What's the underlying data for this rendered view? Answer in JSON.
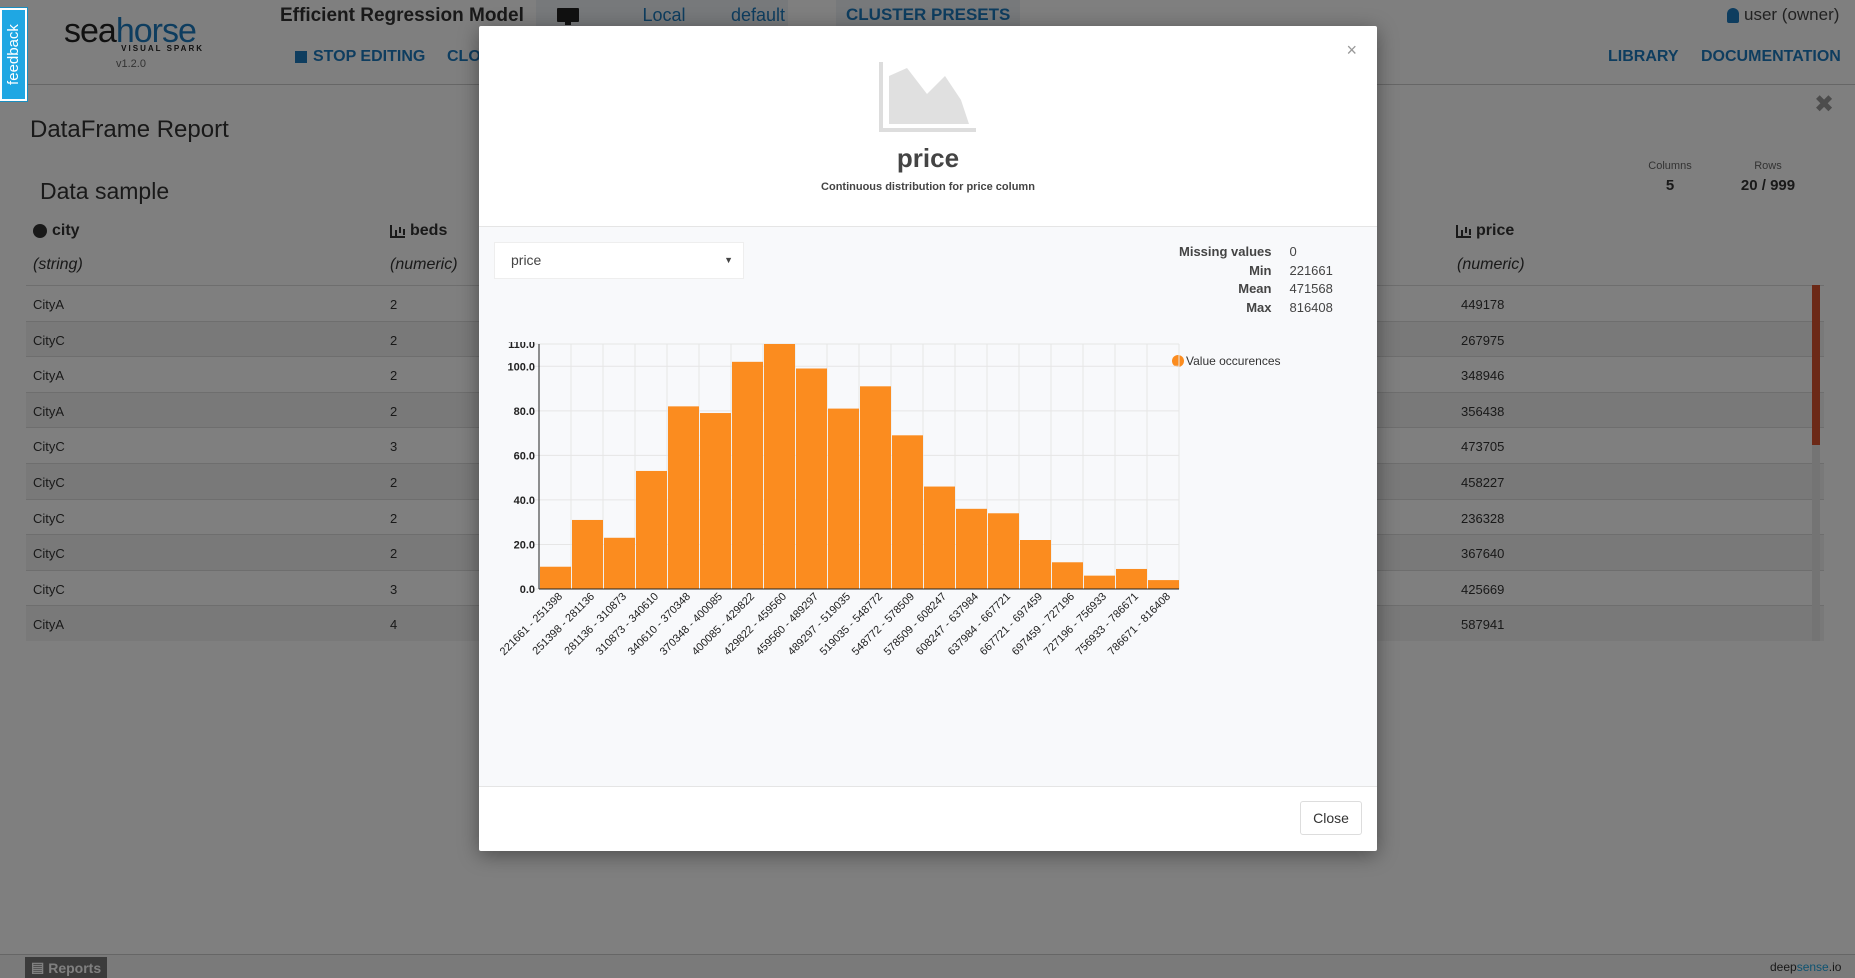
{
  "header": {
    "feedback": "feedback",
    "logo_main_a": "sea",
    "logo_main_b": "horse",
    "logo_sub": "VISUAL SPARK",
    "version": "v1.2.0",
    "workflow_title": "Efficient Regression Model",
    "cluster": {
      "local": "Local",
      "default": "default",
      "presets": "CLUSTER PRESETS"
    },
    "stop_editing": "STOP EDITING",
    "clo": "CLO",
    "user": "user (owner)",
    "library": "LIBRARY",
    "documentation": "DOCUMENTATION"
  },
  "report": {
    "title": "DataFrame Report",
    "close": "✖",
    "data_sample": "Data sample",
    "columns_label": "Columns",
    "columns_value": "5",
    "rows_label": "Rows",
    "rows_value": "20 / 999",
    "headers": [
      {
        "name": "city",
        "type": "(string)"
      },
      {
        "name": "beds",
        "type": "(numeric)"
      },
      {
        "name": "price",
        "type": "(numeric)"
      }
    ],
    "rows": [
      {
        "city": "CityA",
        "beds": "2",
        "price": "449178"
      },
      {
        "city": "CityC",
        "beds": "2",
        "price": "267975"
      },
      {
        "city": "CityA",
        "beds": "2",
        "price": "348946"
      },
      {
        "city": "CityA",
        "beds": "2",
        "price": "356438"
      },
      {
        "city": "CityC",
        "beds": "3",
        "price": "473705"
      },
      {
        "city": "CityC",
        "beds": "2",
        "price": "458227"
      },
      {
        "city": "CityC",
        "beds": "2",
        "price": "236328"
      },
      {
        "city": "CityC",
        "beds": "2",
        "price": "367640"
      },
      {
        "city": "CityC",
        "beds": "3",
        "price": "425669"
      },
      {
        "city": "CityA",
        "beds": "4",
        "price": "587941"
      }
    ]
  },
  "footer": {
    "reports_tab": "Reports",
    "brand_a": "deep",
    "brand_b": "sense",
    "brand_c": ".io"
  },
  "modal": {
    "close_x": "×",
    "title": "price",
    "subtitle": "Continuous distribution for price column",
    "select_value": "price",
    "select_caret": "▼",
    "stats": [
      {
        "label": "Missing values",
        "value": "0"
      },
      {
        "label": "Min",
        "value": "221661"
      },
      {
        "label": "Mean",
        "value": "471568"
      },
      {
        "label": "Max",
        "value": "816408"
      }
    ],
    "legend": "Value occurences",
    "close_button": "Close"
  },
  "chart_data": {
    "type": "bar",
    "categories": [
      "221661 - 251398",
      "251398 - 281136",
      "281136 - 310873",
      "310873 - 340610",
      "340610 - 370348",
      "370348 - 400085",
      "400085 - 429822",
      "429822 - 459560",
      "459560 - 489297",
      "489297 - 519035",
      "519035 - 548772",
      "548772 - 578509",
      "578509 - 608247",
      "608247 - 637984",
      "637984 - 667721",
      "667721 - 697459",
      "697459 - 727196",
      "727196 - 756933",
      "756933 - 786671",
      "786671 - 816408"
    ],
    "series": [
      {
        "name": "Value occurences",
        "values": [
          10,
          31,
          23,
          53,
          82,
          79,
          102,
          110,
          99,
          81,
          91,
          69,
          46,
          36,
          34,
          22,
          12,
          6,
          9,
          4
        ]
      }
    ],
    "yticks": [
      "0.0",
      "20.0",
      "40.0",
      "60.0",
      "80.0",
      "100.0",
      "110.0"
    ],
    "ylim": [
      0,
      110
    ],
    "color": "#fb8c1f",
    "grid": true,
    "legend_position": "top-right"
  }
}
